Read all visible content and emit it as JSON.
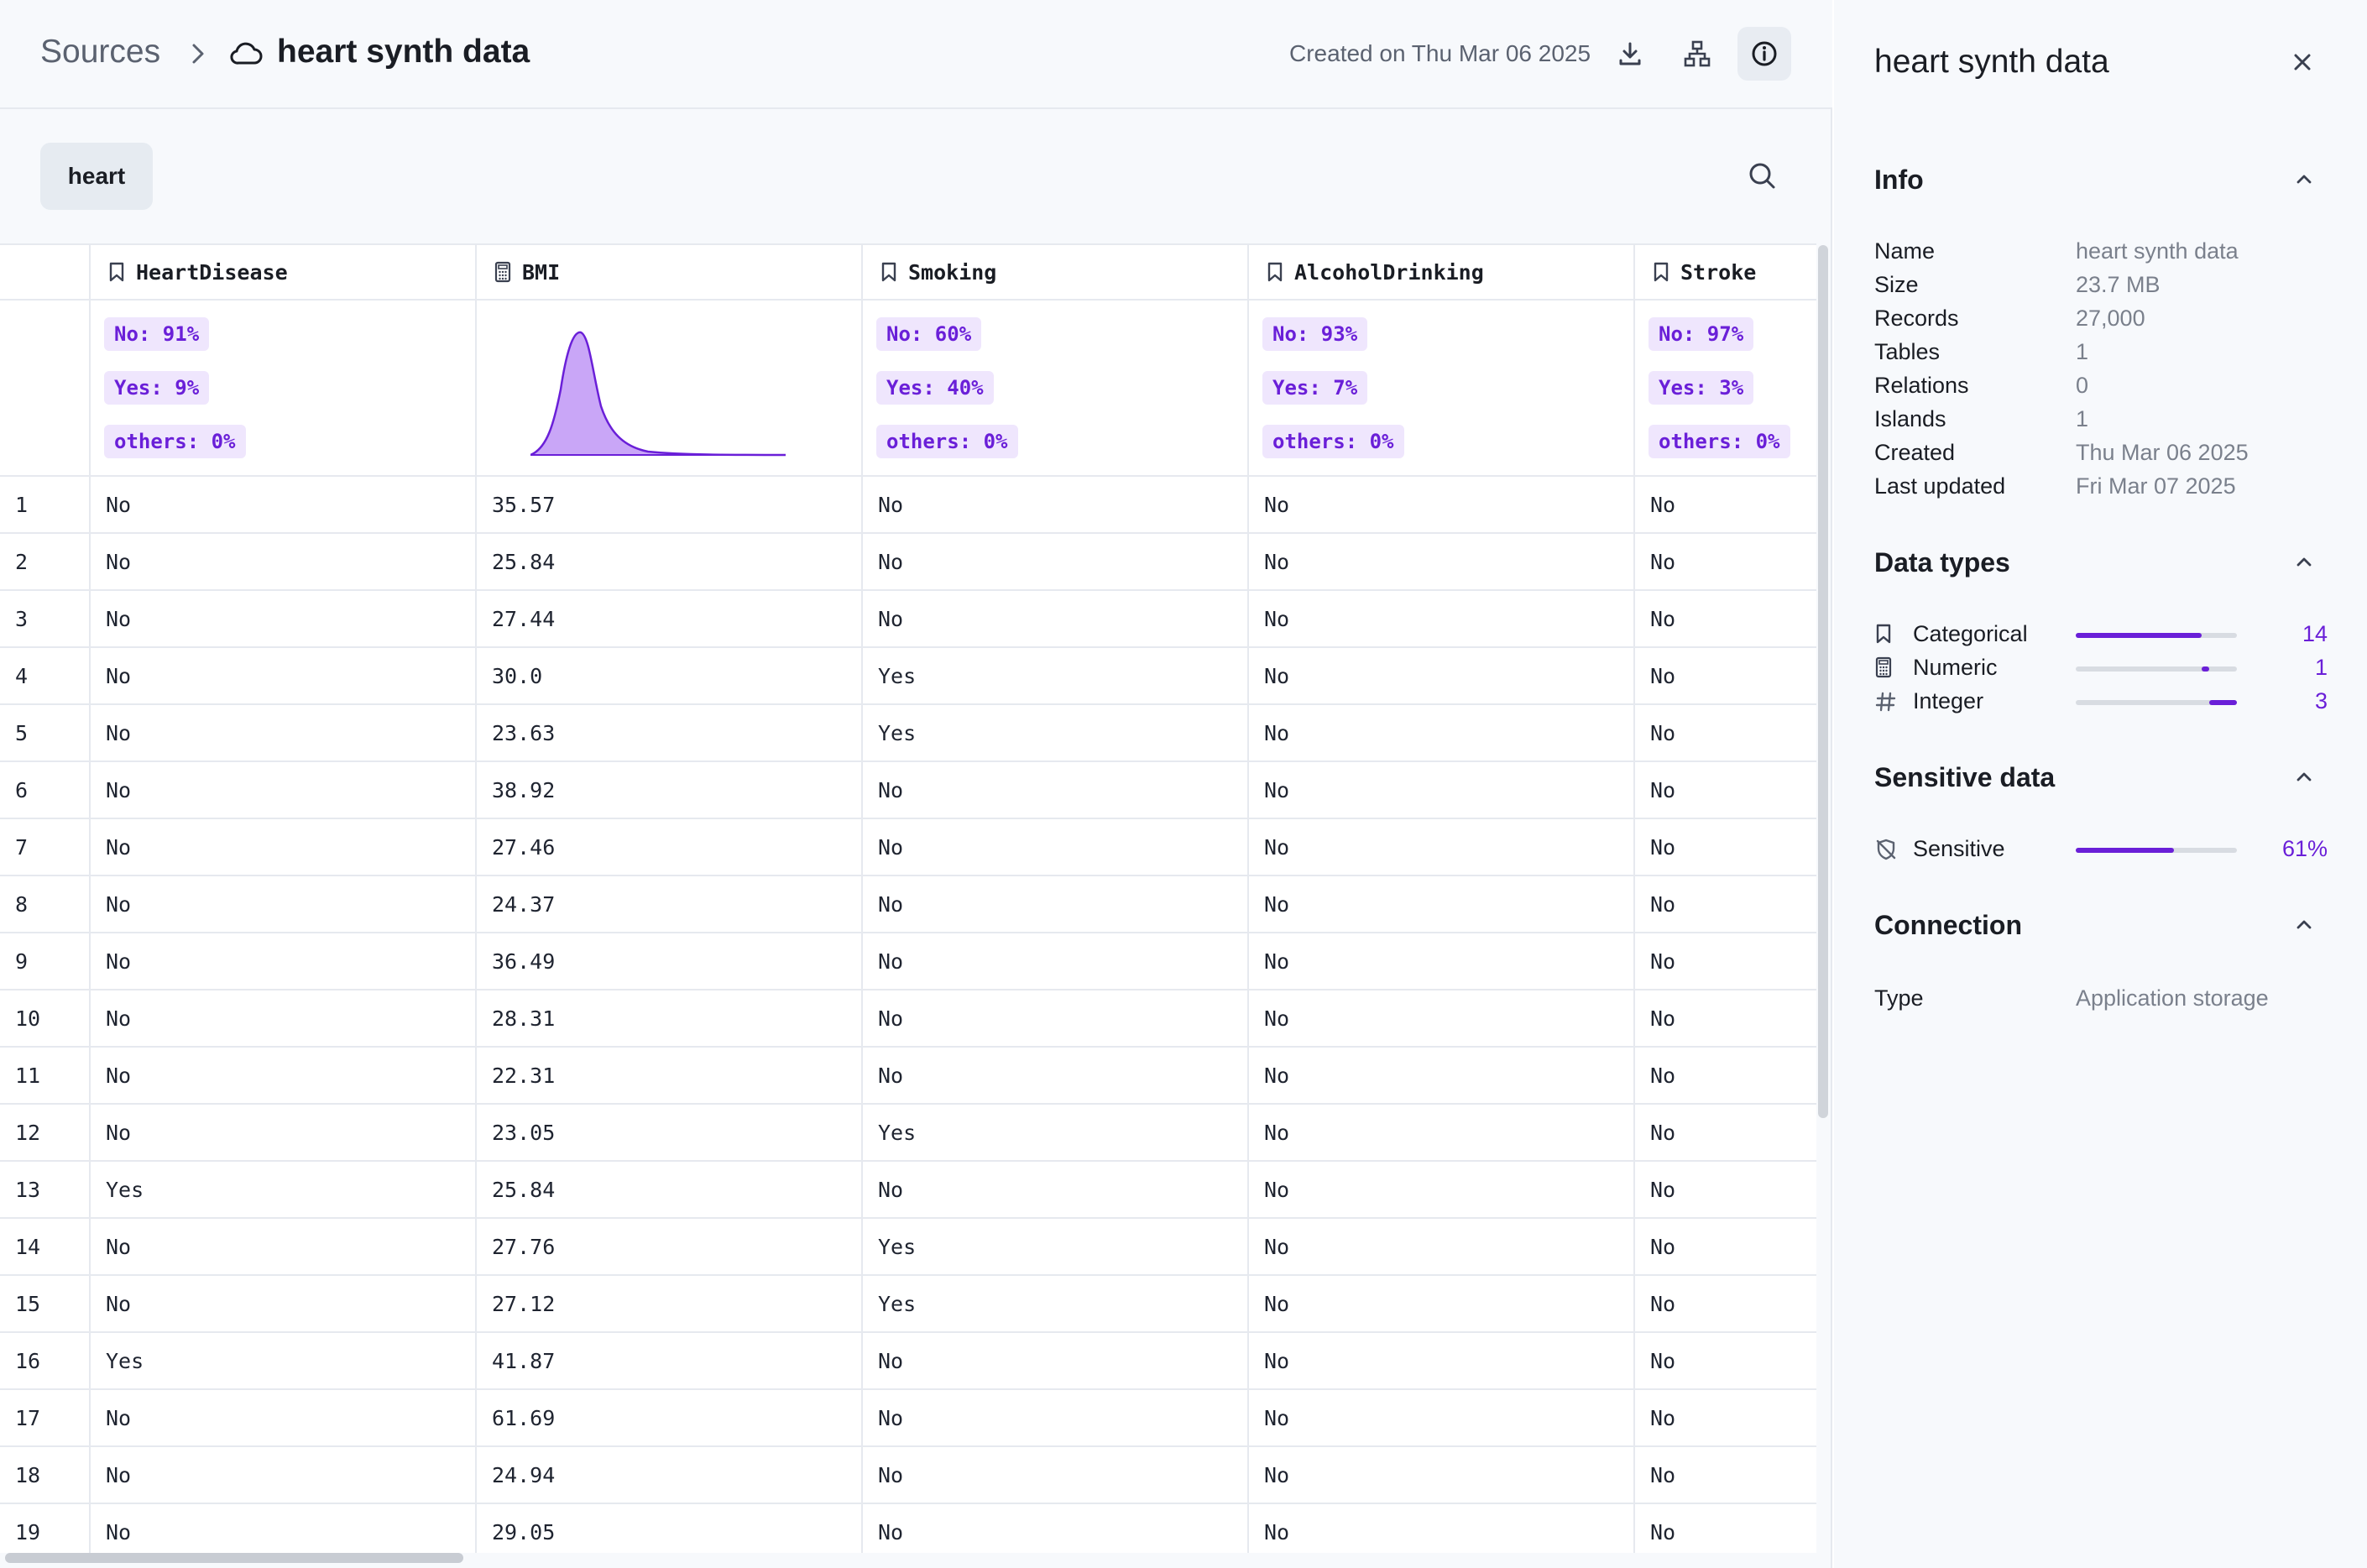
{
  "header": {
    "breadcrumb_root": "Sources",
    "title": "heart synth data",
    "created": "Created on Thu Mar 06 2025"
  },
  "table_tab": "heart",
  "columns": [
    {
      "name": "HeartDisease",
      "type_icon": "bookmark-icon",
      "kind": "categorical",
      "dist": [
        {
          "label": "No: 91%"
        },
        {
          "label": "Yes: 9%"
        },
        {
          "label": "others: 0%"
        }
      ]
    },
    {
      "name": "BMI",
      "type_icon": "calculator-icon",
      "kind": "numeric"
    },
    {
      "name": "Smoking",
      "type_icon": "bookmark-icon",
      "kind": "categorical",
      "dist": [
        {
          "label": "No: 60%"
        },
        {
          "label": "Yes: 40%"
        },
        {
          "label": "others: 0%"
        }
      ]
    },
    {
      "name": "AlcoholDrinking",
      "type_icon": "bookmark-icon",
      "kind": "categorical",
      "dist": [
        {
          "label": "No: 93%"
        },
        {
          "label": "Yes: 7%"
        },
        {
          "label": "others: 0%"
        }
      ]
    },
    {
      "name": "Stroke",
      "type_icon": "bookmark-icon",
      "kind": "categorical",
      "dist": [
        {
          "label": "No: 97%"
        },
        {
          "label": "Yes: 3%"
        },
        {
          "label": "others: 0%"
        }
      ]
    }
  ],
  "rows": [
    [
      "1",
      "No",
      "35.57",
      "No",
      "No",
      "No"
    ],
    [
      "2",
      "No",
      "25.84",
      "No",
      "No",
      "No"
    ],
    [
      "3",
      "No",
      "27.44",
      "No",
      "No",
      "No"
    ],
    [
      "4",
      "No",
      "30.0",
      "Yes",
      "No",
      "No"
    ],
    [
      "5",
      "No",
      "23.63",
      "Yes",
      "No",
      "No"
    ],
    [
      "6",
      "No",
      "38.92",
      "No",
      "No",
      "No"
    ],
    [
      "7",
      "No",
      "27.46",
      "No",
      "No",
      "No"
    ],
    [
      "8",
      "No",
      "24.37",
      "No",
      "No",
      "No"
    ],
    [
      "9",
      "No",
      "36.49",
      "No",
      "No",
      "No"
    ],
    [
      "10",
      "No",
      "28.31",
      "No",
      "No",
      "No"
    ],
    [
      "11",
      "No",
      "22.31",
      "No",
      "No",
      "No"
    ],
    [
      "12",
      "No",
      "23.05",
      "Yes",
      "No",
      "No"
    ],
    [
      "13",
      "Yes",
      "25.84",
      "No",
      "No",
      "No"
    ],
    [
      "14",
      "No",
      "27.76",
      "Yes",
      "No",
      "No"
    ],
    [
      "15",
      "No",
      "27.12",
      "Yes",
      "No",
      "No"
    ],
    [
      "16",
      "Yes",
      "41.87",
      "No",
      "No",
      "No"
    ],
    [
      "17",
      "No",
      "61.69",
      "No",
      "No",
      "No"
    ],
    [
      "18",
      "No",
      "24.94",
      "No",
      "No",
      "No"
    ],
    [
      "19",
      "No",
      "29.05",
      "No",
      "No",
      "No"
    ]
  ],
  "panel": {
    "title": "heart synth data",
    "info": {
      "title": "Info",
      "items": [
        {
          "label": "Name",
          "value": "heart synth data"
        },
        {
          "label": "Size",
          "value": "23.7 MB"
        },
        {
          "label": "Records",
          "value": "27,000"
        },
        {
          "label": "Tables",
          "value": "1"
        },
        {
          "label": "Relations",
          "value": "0"
        },
        {
          "label": "Islands",
          "value": "1"
        },
        {
          "label": "Created",
          "value": "Thu Mar 06 2025"
        },
        {
          "label": "Last updated",
          "value": "Fri Mar 07 2025"
        }
      ]
    },
    "data_types": {
      "title": "Data types",
      "items": [
        {
          "label": "Categorical",
          "count": "14",
          "icon": "bookmark-icon",
          "fill_start": 0.0,
          "fill_end": 0.78
        },
        {
          "label": "Numeric",
          "count": "1",
          "icon": "calculator-icon",
          "fill_start": 0.78,
          "fill_end": 0.83
        },
        {
          "label": "Integer",
          "count": "3",
          "icon": "hash-icon",
          "fill_start": 0.83,
          "fill_end": 1.0
        }
      ]
    },
    "sensitive": {
      "title": "Sensitive data",
      "label": "Sensitive",
      "value": "61%",
      "fraction": 0.61
    },
    "connection": {
      "title": "Connection",
      "label": "Type",
      "value": "Application storage"
    }
  },
  "colors": {
    "accent": "#6a1fd8",
    "pill_bg": "#efe6fd"
  }
}
